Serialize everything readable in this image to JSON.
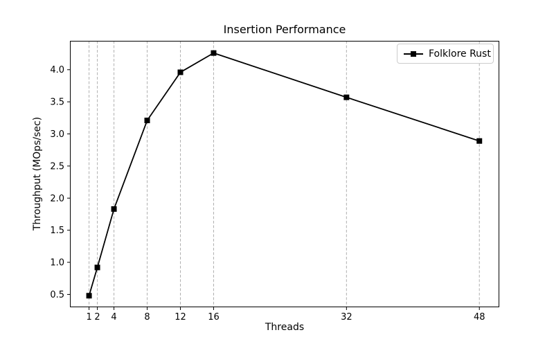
{
  "chart_data": {
    "type": "line",
    "title": "Insertion Performance",
    "xlabel": "Threads",
    "ylabel": "Throughput (MOps/sec)",
    "x": [
      1,
      2,
      4,
      8,
      12,
      16,
      32,
      48
    ],
    "series": [
      {
        "name": "Folklore Rust",
        "values": [
          0.48,
          0.92,
          1.83,
          3.21,
          3.96,
          4.26,
          3.57,
          2.89
        ],
        "color": "#000000",
        "marker": "square"
      }
    ],
    "xticks": [
      1,
      2,
      4,
      8,
      12,
      16,
      32,
      48
    ],
    "yticks": [
      0.5,
      1.0,
      1.5,
      2.0,
      2.5,
      3.0,
      3.5,
      4.0
    ],
    "xlim": [
      -1.3,
      50.4
    ],
    "ylim": [
      0.3,
      4.45
    ],
    "grid": {
      "axis": "x",
      "style": "dashed",
      "color": "#b0b0b0"
    },
    "legend": {
      "position": "upper right",
      "entries": [
        "Folklore Rust"
      ]
    },
    "colors": {
      "line": "#000000",
      "spine": "#000000",
      "grid": "#b0b0b0",
      "tick_label": "#000000",
      "background": "#ffffff"
    }
  }
}
